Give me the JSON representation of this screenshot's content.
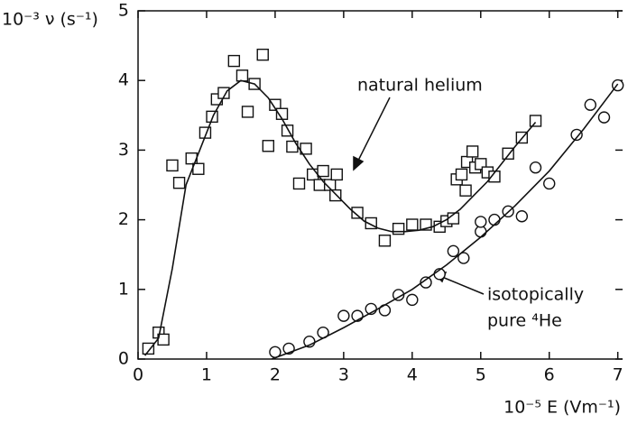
{
  "chart_data": {
    "type": "scatter",
    "y_label": "10⁻³ ν (s⁻¹)",
    "x_label": "10⁻⁵ E  (Vm⁻¹)",
    "annotations": [
      "natural helium",
      "isotopically",
      "pure ⁴He"
    ],
    "xlim": [
      0,
      7.07
    ],
    "ylim": [
      0,
      5
    ],
    "xticks": [
      0,
      1,
      2,
      3,
      4,
      5,
      6,
      7
    ],
    "yticks": [
      0,
      1,
      2,
      3,
      4,
      5
    ],
    "color": "#111111",
    "series": [
      {
        "marker": "square",
        "x": [
          0.15,
          0.3,
          0.37,
          0.5,
          0.6,
          0.78,
          0.88,
          0.98,
          1.08,
          1.15,
          1.25,
          1.4,
          1.52,
          1.6,
          1.7,
          1.82,
          1.9,
          2.0,
          2.1,
          2.18,
          2.25,
          2.35,
          2.45,
          2.55,
          2.65,
          2.7,
          2.8,
          2.88,
          2.9,
          3.2,
          3.4,
          3.6,
          3.8,
          4.0,
          4.2,
          4.4,
          4.5,
          4.6,
          4.65,
          4.72,
          4.78,
          4.8,
          4.88,
          4.92,
          5.0,
          5.1,
          5.2,
          5.4,
          5.6,
          5.8
        ],
        "values": [
          0.15,
          0.38,
          0.28,
          2.78,
          2.53,
          2.88,
          2.73,
          3.25,
          3.48,
          3.73,
          3.82,
          4.28,
          4.07,
          3.55,
          3.95,
          4.37,
          3.06,
          3.65,
          3.52,
          3.28,
          3.05,
          2.52,
          3.02,
          2.65,
          2.5,
          2.7,
          2.5,
          2.35,
          2.65,
          2.1,
          1.95,
          1.7,
          1.87,
          1.93,
          1.93,
          1.9,
          1.98,
          2.02,
          2.58,
          2.65,
          2.42,
          2.83,
          2.98,
          2.75,
          2.8,
          2.68,
          2.62,
          2.95,
          3.18,
          3.42
        ]
      },
      {
        "marker": "circle",
        "x": [
          2.0,
          2.2,
          2.5,
          2.7,
          3.0,
          3.2,
          3.4,
          3.6,
          3.8,
          4.0,
          4.2,
          4.4,
          4.6,
          4.75,
          5.0,
          5.0,
          5.2,
          5.4,
          5.6,
          5.8,
          6.0,
          6.4,
          6.6,
          6.8,
          7.0
        ],
        "values": [
          0.1,
          0.15,
          0.25,
          0.38,
          0.62,
          0.62,
          0.72,
          0.7,
          0.92,
          0.85,
          1.1,
          1.22,
          1.55,
          1.45,
          1.83,
          1.97,
          2.0,
          2.12,
          2.05,
          2.75,
          2.52,
          3.22,
          3.65,
          3.47,
          3.93
        ]
      },
      {
        "marker": "line",
        "x": [
          0.1,
          0.3,
          0.5,
          0.7,
          0.9,
          1.1,
          1.3,
          1.5,
          1.7,
          1.9,
          2.1,
          2.3,
          2.5,
          2.7,
          2.9,
          3.1,
          3.3,
          3.5,
          3.7,
          3.9,
          4.1,
          4.3,
          4.5,
          4.7,
          4.9,
          5.1,
          5.3,
          5.5,
          5.8
        ],
        "values": [
          0.05,
          0.3,
          1.3,
          2.5,
          3.0,
          3.5,
          3.85,
          4.0,
          3.95,
          3.75,
          3.45,
          3.1,
          2.8,
          2.55,
          2.35,
          2.15,
          1.98,
          1.88,
          1.83,
          1.83,
          1.85,
          1.9,
          2.0,
          2.15,
          2.35,
          2.55,
          2.8,
          3.05,
          3.4
        ]
      },
      {
        "marker": "line",
        "x": [
          1.95,
          2.5,
          3.0,
          3.5,
          4.0,
          4.5,
          5.0,
          5.5,
          6.0,
          6.5,
          7.0
        ],
        "values": [
          0.0,
          0.2,
          0.45,
          0.72,
          1.0,
          1.35,
          1.75,
          2.2,
          2.7,
          3.3,
          3.95
        ]
      }
    ]
  }
}
